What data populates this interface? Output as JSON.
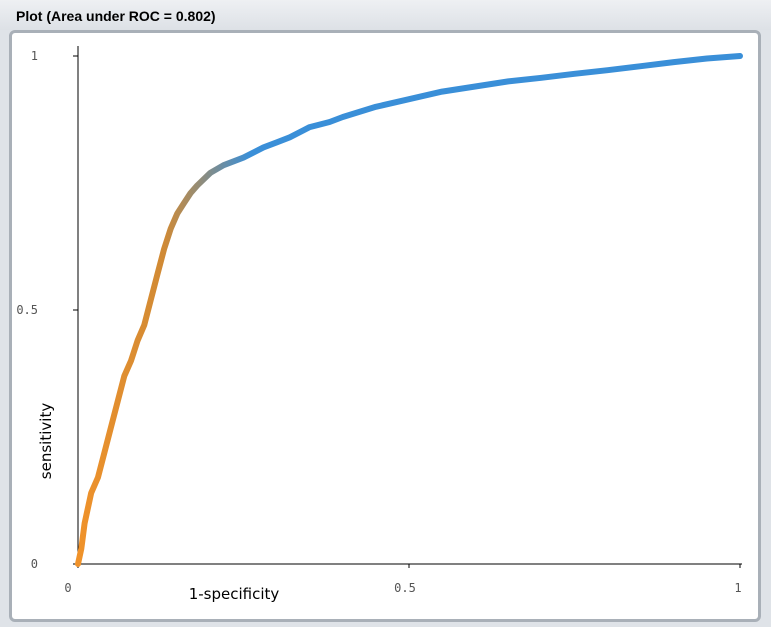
{
  "window": {
    "title": "Plot (Area under ROC = 0.802)"
  },
  "chart_data": {
    "type": "line",
    "title": "Plot (Area under ROC = 0.802)",
    "xlabel": "1-specificity",
    "ylabel": "sensitivity",
    "xlim": [
      0,
      1
    ],
    "ylim": [
      0,
      1
    ],
    "x_ticks": [
      {
        "value": 0,
        "label": "0"
      },
      {
        "value": 0.5,
        "label": "0.5"
      },
      {
        "value": 1,
        "label": "1"
      }
    ],
    "y_ticks": [
      {
        "value": 0,
        "label": "0"
      },
      {
        "value": 0.5,
        "label": "0.5"
      },
      {
        "value": 1,
        "label": "1"
      }
    ],
    "grid": false,
    "color_start": "#f0922a",
    "color_end": "#3a8fd8",
    "series": [
      {
        "x": [
          0,
          0.005,
          0.01,
          0.015,
          0.02,
          0.03,
          0.04,
          0.05,
          0.06,
          0.07,
          0.08,
          0.09,
          0.1,
          0.11,
          0.12,
          0.13,
          0.14,
          0.15,
          0.16,
          0.17,
          0.18,
          0.2,
          0.22,
          0.25,
          0.28,
          0.3,
          0.32,
          0.35,
          0.38,
          0.4,
          0.45,
          0.5,
          0.55,
          0.6,
          0.65,
          0.7,
          0.75,
          0.8,
          0.85,
          0.9,
          0.95,
          1.0
        ],
        "y": [
          0,
          0.03,
          0.08,
          0.11,
          0.14,
          0.17,
          0.22,
          0.27,
          0.32,
          0.37,
          0.4,
          0.44,
          0.47,
          0.52,
          0.57,
          0.62,
          0.66,
          0.69,
          0.71,
          0.73,
          0.745,
          0.77,
          0.785,
          0.8,
          0.82,
          0.83,
          0.84,
          0.86,
          0.87,
          0.88,
          0.9,
          0.915,
          0.93,
          0.94,
          0.95,
          0.957,
          0.965,
          0.972,
          0.98,
          0.988,
          0.995,
          1.0
        ]
      }
    ]
  }
}
